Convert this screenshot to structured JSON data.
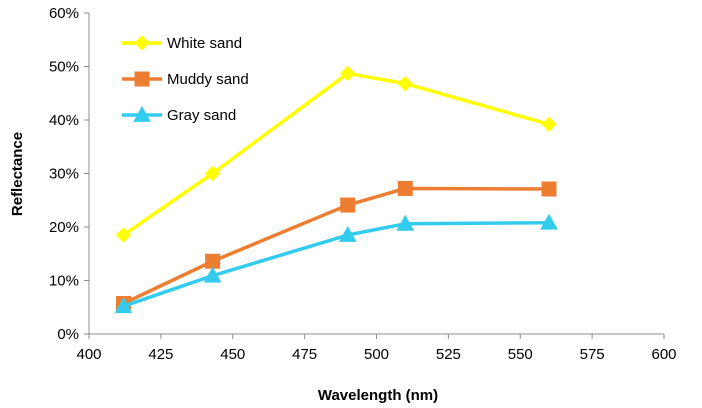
{
  "chart_data": {
    "type": "line",
    "title": "",
    "xlabel": "Wavelength (nm)",
    "ylabel": "Reflectance",
    "x": [
      412,
      443,
      490,
      510,
      560
    ],
    "xlim": [
      400,
      600
    ],
    "ylim": [
      0,
      60
    ],
    "x_ticks": [
      400,
      425,
      450,
      475,
      500,
      525,
      550,
      575,
      600
    ],
    "y_ticks": [
      0,
      10,
      20,
      30,
      40,
      50,
      60
    ],
    "x_tick_labels": [
      "400",
      "425",
      "450",
      "475",
      "500",
      "525",
      "550",
      "575",
      "600"
    ],
    "y_tick_labels": [
      "0%",
      "10%",
      "20%",
      "30%",
      "40%",
      "50%",
      "60%"
    ],
    "y_unit": "%",
    "grid": false,
    "legend_position": "top-left",
    "series": [
      {
        "name": "White sand",
        "values": [
          18.5,
          30.0,
          48.7,
          46.8,
          39.2
        ],
        "color": "#ffff00",
        "marker": "diamond"
      },
      {
        "name": "Muddy sand",
        "values": [
          5.7,
          13.6,
          24.1,
          27.2,
          27.1
        ],
        "color": "#ed7d31",
        "marker": "square"
      },
      {
        "name": "Gray sand",
        "values": [
          5.2,
          10.9,
          18.5,
          20.6,
          20.8
        ],
        "color": "#33ccee",
        "marker": "triangle"
      }
    ]
  }
}
